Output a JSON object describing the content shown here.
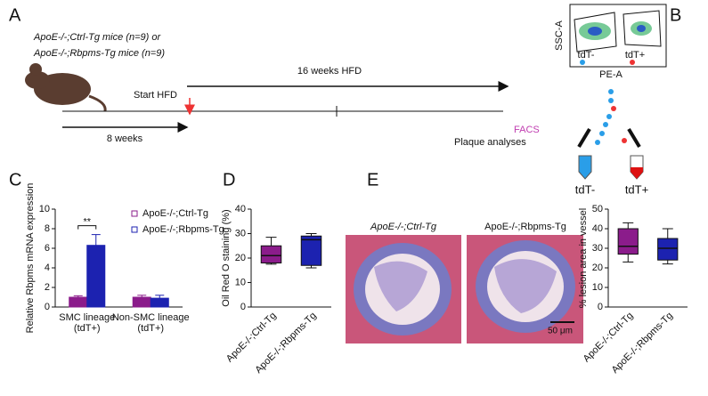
{
  "panel_a": {
    "letter": "A",
    "cohort_1": "ApoE-/-;Ctrl-Tg mice (n=9) or",
    "cohort_2": "ApoE-/-;Rbpms-Tg mice (n=9)",
    "hfd_label": "16 weeks HFD",
    "start_label": "Start HFD",
    "age_label": "8 weeks",
    "facs_label": "FACS",
    "plaque_label": "Plaque analyses"
  },
  "panel_b": {
    "letter": "B",
    "y_axis": "SSC-A",
    "x_axis": "PE-A",
    "gate_neg": "tdT-",
    "gate_pos": "tdT+",
    "tube_neg": "tdT-",
    "tube_pos": "tdT+"
  },
  "panel_e": {
    "letter": "E",
    "image_1": "ApoE-/-;Ctrl-Tg",
    "image_2": "ApoE-/-;Rbpms-Tg",
    "scale_bar": "50 μm"
  },
  "chart_data": [
    {
      "type": "bar",
      "letter": "C",
      "ylabel": "Relative Rbpms mRNA expression",
      "annotation": "**",
      "categories": [
        "SMC lineage (tdT+)",
        "Non-SMC lineage (tdT+)"
      ],
      "series": [
        {
          "name": "ApoE-/-;Ctrl-Tg",
          "color": "#8b1c8b",
          "values": [
            1.0,
            1.0
          ],
          "errors": [
            0.15,
            0.2
          ]
        },
        {
          "name": "ApoE-/-;Rbpms-Tg",
          "color": "#1c22b0",
          "values": [
            6.3,
            0.9
          ],
          "errors": [
            1.1,
            0.3
          ]
        }
      ],
      "ylim": [
        0,
        10
      ],
      "yticks": [
        0,
        2,
        4,
        6,
        8,
        10
      ]
    },
    {
      "type": "box",
      "letter": "D",
      "ylabel": "Oil Red O staining (%)",
      "categories": [
        "ApoE-/-;Ctrl-Tg",
        "ApoE-/-;Rbpms-Tg"
      ],
      "colors": [
        "#8b1c8b",
        "#1c22b0"
      ],
      "min": [
        17.5,
        16
      ],
      "q1": [
        18,
        17
      ],
      "median": [
        21,
        27.5
      ],
      "q3": [
        25,
        29
      ],
      "max": [
        28.5,
        30
      ],
      "ylim": [
        0,
        40
      ],
      "yticks": [
        0,
        10,
        20,
        30,
        40
      ]
    },
    {
      "type": "box",
      "ylabel": "% lesion area in vessel",
      "categories": [
        "ApoE-/-;Ctrl-Tg",
        "ApoE-/-;Rbpms-Tg"
      ],
      "colors": [
        "#8b1c8b",
        "#1c22b0"
      ],
      "min": [
        23,
        22
      ],
      "q1": [
        27,
        24
      ],
      "median": [
        31,
        30
      ],
      "q3": [
        40,
        35
      ],
      "max": [
        43,
        40
      ],
      "ylim": [
        0,
        50
      ],
      "yticks": [
        0,
        10,
        20,
        30,
        40,
        50
      ]
    }
  ]
}
